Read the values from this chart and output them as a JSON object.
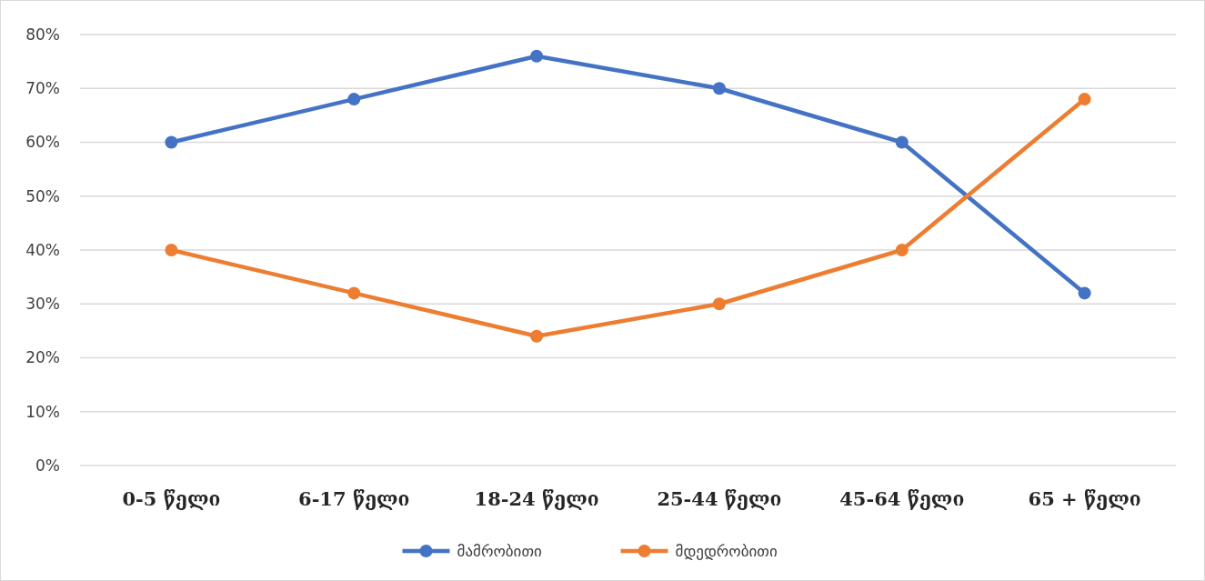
{
  "chart_data": {
    "type": "line",
    "categories": [
      "0-5 წელი",
      "6-17 წელი",
      "18-24 წელი",
      "25-44 წელი",
      "45-64 წელი",
      "65 + წელი"
    ],
    "series": [
      {
        "name": "მამრობითი",
        "color": "#4472c4",
        "values": [
          60,
          68,
          76,
          70,
          60,
          32
        ]
      },
      {
        "name": "მდედრობითი",
        "color": "#ed7d31",
        "values": [
          40,
          32,
          24,
          30,
          40,
          68
        ]
      }
    ],
    "ylim": [
      0,
      80
    ],
    "yticks": [
      {
        "value": 0,
        "label": "0%"
      },
      {
        "value": 10,
        "label": "10%"
      },
      {
        "value": 20,
        "label": "20%"
      },
      {
        "value": 30,
        "label": "30%"
      },
      {
        "value": 40,
        "label": "40%"
      },
      {
        "value": 50,
        "label": "50%"
      },
      {
        "value": 60,
        "label": "60%"
      },
      {
        "value": 70,
        "label": "70%"
      },
      {
        "value": 80,
        "label": "80%"
      }
    ],
    "grid": "y",
    "legend": "bottom",
    "marker": "circle",
    "line_style": "solid"
  }
}
